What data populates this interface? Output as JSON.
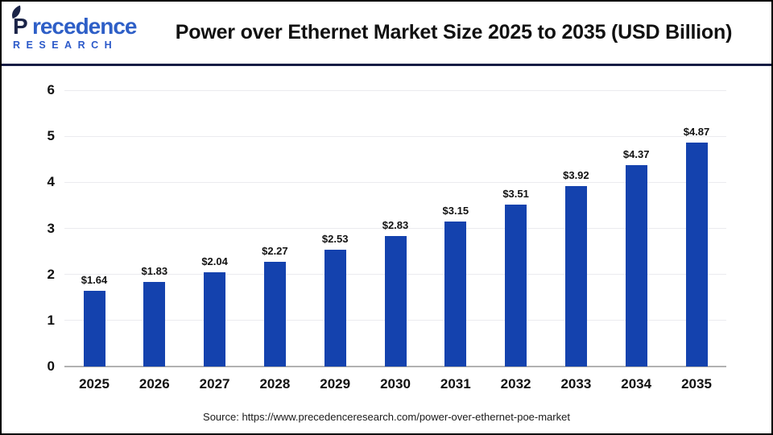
{
  "header": {
    "logo": {
      "name_initial": "P",
      "name_rest": "recedence",
      "line2": "RESEARCH"
    },
    "title": "Power over Ethernet Market Size 2025 to 2035 (USD Billion)"
  },
  "chart_data": {
    "type": "bar",
    "title": "Power over Ethernet Market Size 2025 to 2035 (USD Billion)",
    "categories": [
      "2025",
      "2026",
      "2027",
      "2028",
      "2029",
      "2030",
      "2031",
      "2032",
      "2033",
      "2034",
      "2035"
    ],
    "values": [
      1.64,
      1.83,
      2.04,
      2.27,
      2.53,
      2.83,
      3.15,
      3.51,
      3.92,
      4.37,
      4.87
    ],
    "data_labels": [
      "$1.64",
      "$1.83",
      "$2.04",
      "$2.27",
      "$2.53",
      "$2.83",
      "$3.15",
      "$3.51",
      "$3.92",
      "$4.37",
      "$4.87"
    ],
    "xlabel": "",
    "ylabel": "",
    "ylim": [
      0,
      6
    ],
    "yticks": [
      0,
      1,
      2,
      3,
      4,
      5,
      6
    ],
    "grid": true,
    "legend": "none",
    "bar_color": "#1442ae"
  },
  "footer": {
    "source": "Source: https://www.precedenceresearch.com/power-over-ethernet-poe-market"
  },
  "colors": {
    "bar": "#1442ae",
    "separator": "#161d45",
    "gridline": "#ebebef",
    "axis_line": "#b1b1b1",
    "logo_navy": "#1b2448",
    "logo_blue": "#2e5fc7"
  }
}
